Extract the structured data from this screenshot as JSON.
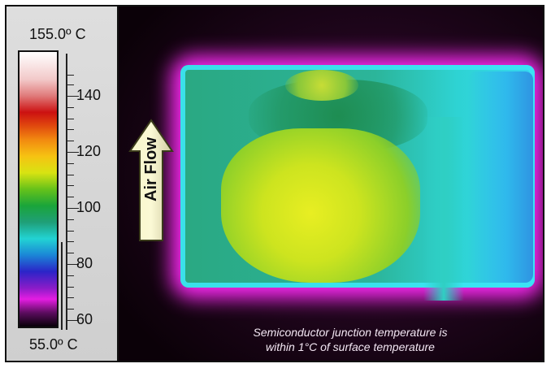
{
  "scale": {
    "max_label": "155.0º C",
    "min_label": "55.0º C",
    "ticks": [
      "140",
      "120",
      "100",
      "80",
      "60"
    ]
  },
  "thermal": {
    "arrow_label": "Air Flow",
    "caption_line1": "Semiconductor junction temperature is",
    "caption_line2": "within 1°C of surface temperature"
  },
  "colors": {
    "hot": "#e8ee22",
    "warm": "#2aa882",
    "cool": "#2fb8ec",
    "edge": "#ff2af7",
    "background": "#22061f"
  }
}
